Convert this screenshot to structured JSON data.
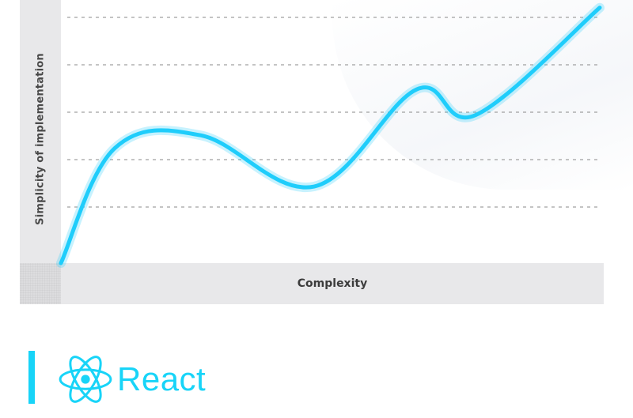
{
  "chart_data": {
    "type": "line",
    "title": "",
    "xlabel": "Complexity",
    "ylabel": "Simplicity of implementation",
    "x": [
      0,
      0.1,
      0.26,
      0.47,
      0.66,
      0.77,
      1.0
    ],
    "series": [
      {
        "values": [
          0,
          0.45,
          0.5,
          0.3,
          0.68,
          0.58,
          1.0
        ]
      }
    ],
    "xlim": [
      0,
      1
    ],
    "ylim": [
      0,
      1.03
    ],
    "grid": "horizontal dashed",
    "line_color": "#1fcdfb"
  },
  "brand": {
    "name": "React",
    "icon": "react-atom-icon",
    "color": "#18d4f8"
  }
}
